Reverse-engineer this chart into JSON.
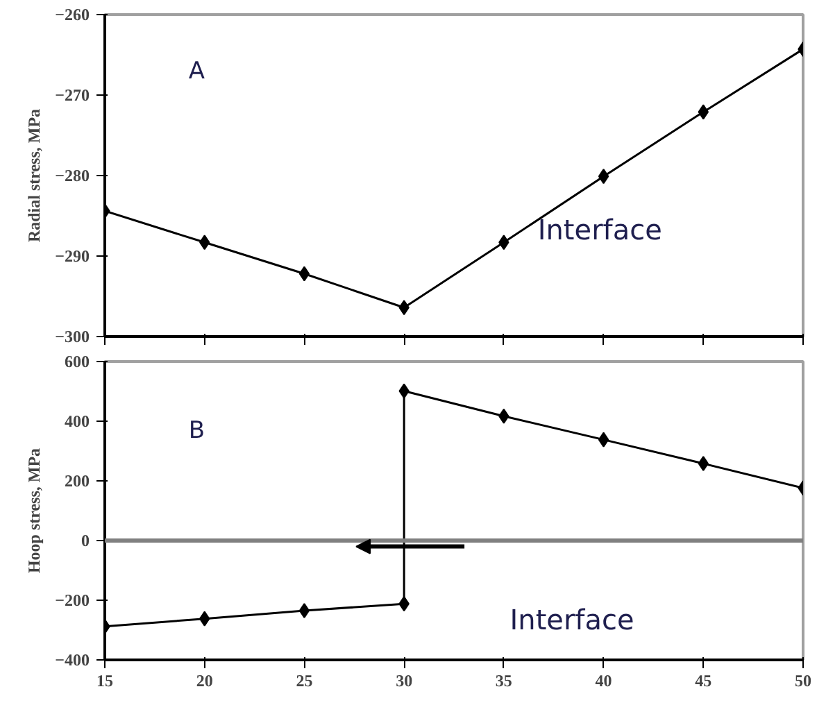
{
  "chart_data": [
    {
      "type": "line",
      "ylabel": "Radial stress, MPa",
      "annotations": [
        "A",
        "Interface"
      ],
      "xlim": [
        15,
        50
      ],
      "xticks": [
        15,
        20,
        25,
        30,
        35,
        40,
        45,
        50
      ],
      "ylim": [
        -300,
        -260
      ],
      "yticks": [
        -300,
        -290,
        -280,
        -270,
        -260
      ],
      "tick_labels": "y",
      "grid": false,
      "marker": "diamond",
      "line_style": "solid",
      "series": [
        {
          "color": "#000000",
          "x": [
            15,
            20,
            25,
            30,
            35,
            40,
            45,
            50
          ],
          "values": [
            -284.4,
            -288.3,
            -292.2,
            -296.4,
            -288.3,
            -280.1,
            -272.1,
            -264.3
          ]
        }
      ]
    },
    {
      "type": "line",
      "ylabel": "Hoop stress, MPa",
      "annotations": [
        "B",
        "Interface"
      ],
      "xlim": [
        15,
        50
      ],
      "xticks": [
        15,
        20,
        25,
        30,
        35,
        40,
        45,
        50
      ],
      "ylim": [
        -400,
        600
      ],
      "yticks": [
        -400,
        -200,
        0,
        200,
        400,
        600
      ],
      "grid": false,
      "marker": "diamond",
      "line_style": "solid",
      "ref_lines": [
        {
          "axis": "y",
          "value": 0,
          "color": "#808080"
        }
      ],
      "series": [
        {
          "color": "#000000",
          "x": [
            15,
            20,
            25,
            30,
            30,
            35,
            40,
            45,
            50
          ],
          "values": [
            -288,
            -262,
            -235,
            -212,
            501,
            417,
            338,
            258,
            176
          ]
        }
      ]
    }
  ]
}
